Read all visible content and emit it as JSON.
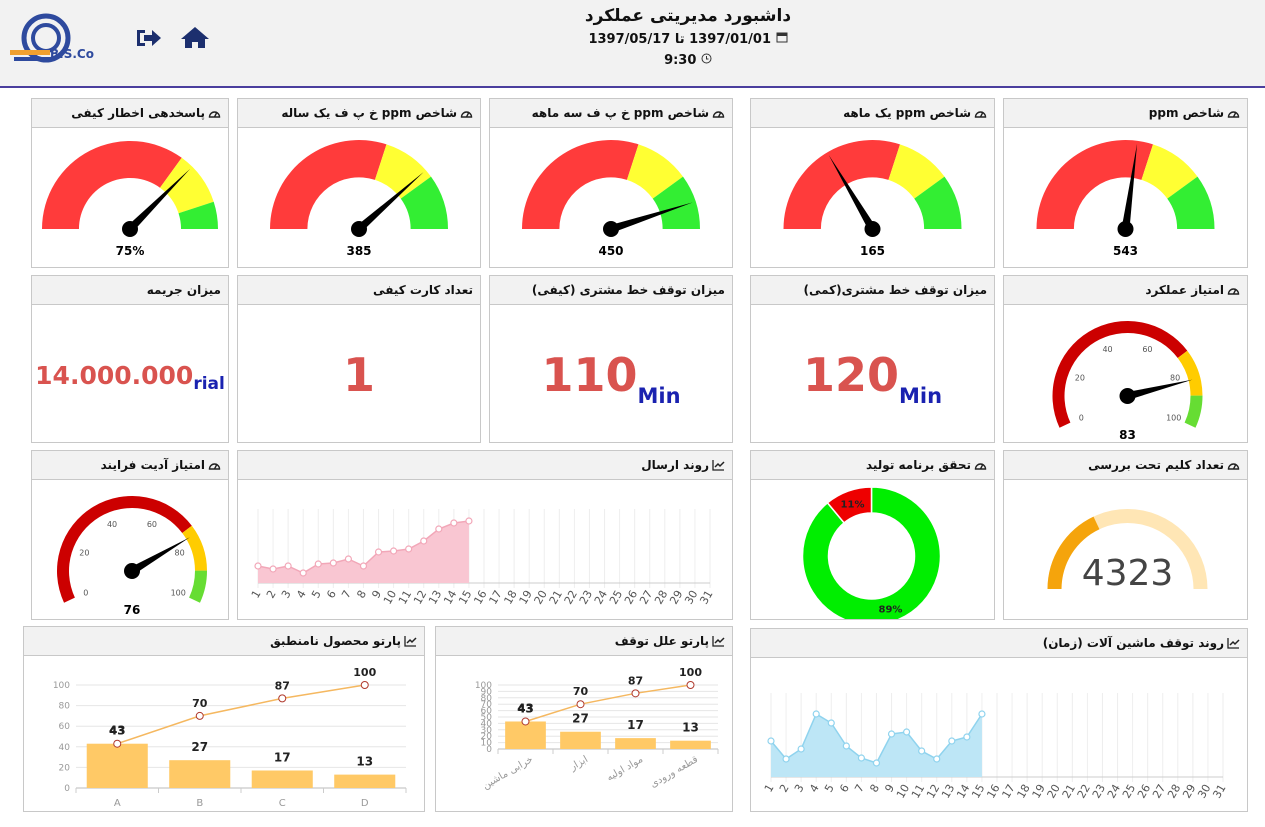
{
  "header": {
    "logo": "B.S.Co",
    "title": "داشبورد مدیریتی عملکرد",
    "date_range": "1397/01/01 تا 1397/05/17",
    "time": "9:30"
  },
  "panels": [
    {
      "type": "gauge",
      "title": "شاخص ppm",
      "value": 543,
      "range": [
        0,
        1000
      ],
      "bands": [
        {
          "to": 600,
          "color": "#ff3b3b"
        },
        {
          "to": 800,
          "color": "#ffff33"
        },
        {
          "to": 1000,
          "color": "#33ee33"
        }
      ]
    },
    {
      "type": "gauge",
      "title": "شاخص ppm یک ماهه",
      "value": 165,
      "range": [
        0,
        500
      ],
      "bands": [
        {
          "to": 300,
          "color": "#ff3b3b"
        },
        {
          "to": 400,
          "color": "#ffff33"
        },
        {
          "to": 500,
          "color": "#33ee33"
        }
      ]
    },
    {
      "type": "gauge",
      "title": "شاخص ppm خ پ ف سه ماهه",
      "value": 450,
      "range": [
        0,
        500
      ],
      "bands": [
        {
          "to": 300,
          "color": "#ff3b3b"
        },
        {
          "to": 400,
          "color": "#ffff33"
        },
        {
          "to": 500,
          "color": "#33ee33"
        }
      ]
    },
    {
      "type": "gauge",
      "title": "شاخص ppm خ پ ف یک ساله",
      "value": 385,
      "range": [
        0,
        500
      ],
      "bands": [
        {
          "to": 300,
          "color": "#ff3b3b"
        },
        {
          "to": 400,
          "color": "#ffff33"
        },
        {
          "to": 500,
          "color": "#33ee33"
        }
      ]
    },
    {
      "type": "gauge",
      "title": "پاسخدهی اخطار کیفی",
      "value": 75,
      "value_label": "75%",
      "range": [
        0,
        100
      ],
      "bands": [
        {
          "to": 70,
          "color": "#ff3b3b"
        },
        {
          "to": 90,
          "color": "#ffff33"
        },
        {
          "to": 100,
          "color": "#33ee33"
        }
      ]
    },
    {
      "type": "dial",
      "title": "امتیاز عملکرد",
      "value": 83,
      "range": [
        0,
        100
      ],
      "ticks": [
        0,
        20,
        40,
        60,
        80,
        100
      ],
      "bands": [
        {
          "to": 73,
          "color": "#cc0000"
        },
        {
          "to": 89,
          "color": "#ffcc00"
        },
        {
          "to": 100,
          "color": "#66dd33"
        }
      ]
    },
    {
      "type": "stat",
      "title": "میزان توقف خط مشتری(کمی)",
      "value": 120,
      "unit": "Min"
    },
    {
      "type": "stat",
      "title": "میزان توقف خط مشتری (کیفی)",
      "value": 110,
      "unit": "Min"
    },
    {
      "type": "stat",
      "title": "تعداد کارت کیفی",
      "value": 1
    },
    {
      "type": "stat",
      "title": "میزان جریمه",
      "value": 14000000,
      "value_label": "14.000.000",
      "unit": "rial"
    },
    {
      "type": "arc",
      "title": "تعداد کلیم تحت بررسی",
      "value": 4323,
      "range": [
        0,
        12000
      ],
      "color": "#f5a40c",
      "track": "#ffe6b5"
    },
    {
      "type": "donut",
      "title": "تحقق برنامه تولید",
      "values": [
        89,
        11
      ],
      "value_labels": [
        "89%",
        "11%"
      ],
      "colors": [
        "#00ee00",
        "#ee0000"
      ]
    },
    {
      "type": "area",
      "title": "روند ارسال",
      "x": [
        1,
        2,
        3,
        4,
        5,
        6,
        7,
        8,
        9,
        10,
        11,
        12,
        13,
        14,
        15
      ],
      "values": [
        17,
        14,
        17,
        10,
        19,
        20,
        24,
        17,
        31,
        32,
        34,
        42,
        54,
        60,
        62
      ],
      "xlim": [
        1,
        31
      ],
      "xticks": [
        1,
        2,
        3,
        4,
        5,
        6,
        7,
        8,
        9,
        10,
        11,
        12,
        13,
        14,
        15,
        16,
        17,
        18,
        19,
        20,
        21,
        22,
        23,
        24,
        25,
        26,
        27,
        28,
        29,
        30,
        31
      ],
      "ylim": [
        0,
        70
      ],
      "color": "#f9c6d2",
      "line_color": "#f2a7b8"
    },
    {
      "type": "dial",
      "title": "امتیاز آدیت فرایند",
      "value": 76,
      "range": [
        0,
        100
      ],
      "ticks": [
        0,
        20,
        40,
        60,
        80,
        100
      ],
      "bands": [
        {
          "to": 73,
          "color": "#cc0000"
        },
        {
          "to": 89,
          "color": "#ffcc00"
        },
        {
          "to": 100,
          "color": "#66dd33"
        }
      ]
    },
    {
      "type": "area",
      "title": "روند توقف ماشین آلات (زمان)",
      "x": [
        1,
        2,
        3,
        4,
        5,
        6,
        7,
        8,
        9,
        10,
        11,
        12,
        13,
        14,
        15
      ],
      "values": [
        36,
        18,
        28,
        63,
        54,
        31,
        19,
        14,
        43,
        45,
        26,
        18,
        36,
        40,
        63
      ],
      "xlim": [
        1,
        31
      ],
      "xticks": [
        1,
        2,
        3,
        4,
        5,
        6,
        7,
        8,
        9,
        10,
        11,
        12,
        13,
        14,
        15,
        16,
        17,
        18,
        19,
        20,
        21,
        22,
        23,
        24,
        25,
        26,
        27,
        28,
        29,
        30,
        31
      ],
      "ylim": [
        0,
        80
      ],
      "color": "#bde6f6",
      "line_color": "#8fd3ee"
    },
    {
      "type": "pareto",
      "title": "پارتو علل توقف",
      "categories": [
        "خرابی ماشین",
        "ابزار",
        "مواد اولیه",
        "قطعه ورودی"
      ],
      "series": [
        {
          "type": "bar",
          "values": [
            43,
            27,
            17,
            13
          ],
          "color": "#ffc966"
        },
        {
          "type": "line",
          "values": [
            43,
            70,
            87,
            100
          ],
          "color": "#f5b860"
        }
      ],
      "ylim": [
        0,
        100
      ],
      "yticks": [
        0,
        10,
        20,
        30,
        40,
        50,
        60,
        70,
        80,
        90,
        100
      ]
    },
    {
      "type": "pareto",
      "title": "پارتو محصول نامنطبق",
      "categories": [
        "A",
        "B",
        "C",
        "D"
      ],
      "series": [
        {
          "type": "bar",
          "values": [
            43,
            27,
            17,
            13
          ],
          "color": "#ffc966"
        },
        {
          "type": "line",
          "values": [
            43,
            70,
            87,
            100
          ],
          "color": "#f5b860"
        }
      ],
      "ylim": [
        0,
        100
      ],
      "yticks": [
        0,
        20,
        40,
        60,
        80,
        100
      ]
    }
  ]
}
